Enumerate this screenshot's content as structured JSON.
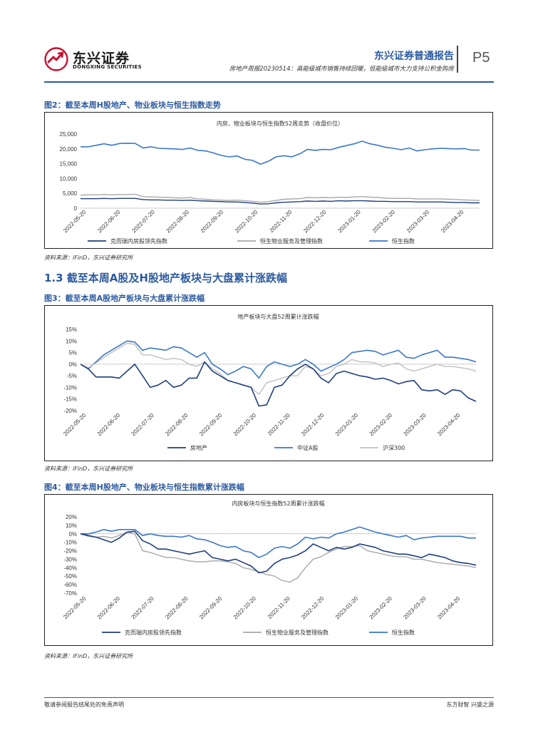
{
  "header": {
    "logo_cn": "东兴证券",
    "logo_en": "DONGXING SECURITIES",
    "report_type": "东兴证券普通报告",
    "report_subtitle": "房地产周报20230514：高能级城市销售持续回暖，低能级城市大力支持公积金购房",
    "page": "P5",
    "colors": {
      "brand_blue": "#2c5aa0",
      "logo_red": "#c8102e"
    }
  },
  "figure2": {
    "title": "图2：截至本周H股地产、物业板块与恒生指数走势",
    "source": "资料来源：iFinD，东兴证券研究所"
  },
  "section": {
    "title": "1.3 截至本周A股及H股地产板块与大盘累计涨跌幅"
  },
  "figure3": {
    "title": "图3：截至本周A股地产板块与大盘累计涨跌幅",
    "source": "资料来源：iFinD，东兴证券研究所"
  },
  "figure4": {
    "title": "图4：截至本周H股地产、物业板块与恒生指数累计涨跌幅",
    "source": "资料来源：iFinD，东兴证券研究所"
  },
  "footer": {
    "left": "敬请参阅报告结尾处的免责声明",
    "right": "东方财智 兴盛之源"
  },
  "chart_data": [
    {
      "id": "chart2",
      "type": "line",
      "title": "内房、物业板块与恒生指数52周走势（收盘价位）",
      "x_tick_labels": [
        "2022-05-20",
        "2022-06-20",
        "2022-07-20",
        "2022-08-20",
        "2022-09-20",
        "2022-10-20",
        "2022-11-20",
        "2022-12-20",
        "2023-01-20",
        "2023-02-20",
        "2023-03-20",
        "2023-04-20"
      ],
      "y_ticks": [
        0,
        5000,
        10000,
        15000,
        20000,
        25000
      ],
      "y_tick_labels": [
        "0",
        "5,000",
        "10,000",
        "15,000",
        "20,000",
        "25,000"
      ],
      "ylim": [
        0,
        25000
      ],
      "series": [
        {
          "name": "恒生指数",
          "color": "#3a78c8",
          "width": 1.6,
          "values": [
            20700,
            20700,
            21200,
            21700,
            21200,
            21800,
            21900,
            21800,
            20300,
            20700,
            20200,
            20100,
            20000,
            19800,
            20300,
            19500,
            19300,
            18600,
            17800,
            17300,
            17600,
            16500,
            16100,
            14800,
            15800,
            17300,
            17700,
            17300,
            18300,
            19800,
            19500,
            19800,
            19700,
            20500,
            21100,
            21700,
            22600,
            21700,
            21200,
            20500,
            20200,
            19700,
            20300,
            19300,
            19700,
            20000,
            20200,
            20100,
            20000,
            20100,
            19600,
            19600
          ]
        },
        {
          "name": "恒生物业服务及管理指数",
          "color": "#a8a8a8",
          "width": 1.4,
          "values": [
            4400,
            4500,
            4500,
            4600,
            4500,
            4600,
            4600,
            4700,
            3900,
            3800,
            3700,
            3600,
            3500,
            3400,
            3600,
            3100,
            3000,
            2800,
            2700,
            2600,
            2700,
            2500,
            2300,
            2000,
            2200,
            2600,
            3000,
            3100,
            3200,
            3600,
            3500,
            3600,
            3500,
            3700,
            3600,
            3800,
            3900,
            3700,
            3600,
            3400,
            3300,
            3300,
            3300,
            3100,
            3100,
            3100,
            3100,
            3000,
            2900,
            2800,
            2700,
            2600
          ]
        },
        {
          "name": "克而瑞内房股领先指数",
          "color": "#1f3f7f",
          "width": 1.4,
          "values": [
            3200,
            3200,
            3200,
            3300,
            3200,
            3300,
            3300,
            3300,
            2900,
            2800,
            2800,
            2700,
            2700,
            2600,
            2700,
            2500,
            2400,
            2300,
            2200,
            2100,
            2100,
            1900,
            1700,
            1400,
            1500,
            1800,
            2000,
            2100,
            2200,
            2400,
            2300,
            2400,
            2300,
            2500,
            2400,
            2500,
            2500,
            2400,
            2300,
            2300,
            2200,
            2200,
            2200,
            2100,
            2100,
            2100,
            2100,
            2000,
            1900,
            1900,
            1800,
            1800
          ]
        }
      ],
      "legend": [
        "克而瑞内房股领先指数",
        "恒生物业服务及管理指数",
        "恒生指数"
      ]
    },
    {
      "id": "chart3",
      "type": "line",
      "title": "地产板块与大盘52周累计涨跌幅",
      "x_tick_labels": [
        "2022-05-20",
        "2022-06-20",
        "2022-07-20",
        "2022-08-20",
        "2022-09-20",
        "2022-10-20",
        "2022-11-20",
        "2022-12-20",
        "2023-01-20",
        "2023-02-20",
        "2023-03-20",
        "2023-04-20"
      ],
      "y_ticks": [
        -20,
        -15,
        -10,
        -5,
        0,
        5,
        10,
        15
      ],
      "y_tick_labels": [
        "-20%",
        "-15%",
        "-10%",
        "-5%",
        "0%",
        "5%",
        "10%",
        "15%"
      ],
      "ylim": [
        -20,
        15
      ],
      "series": [
        {
          "name": "中证A股",
          "color": "#3a78c8",
          "width": 1.6,
          "values": [
            0,
            -2,
            1,
            4,
            6,
            8,
            10,
            9.5,
            6,
            7,
            6.5,
            6,
            7.5,
            7,
            5,
            3,
            5,
            0,
            -2,
            -4.5,
            -3,
            -1,
            -2,
            -6,
            -1,
            1,
            0,
            -1,
            0,
            2,
            0,
            -3,
            -1.5,
            0,
            2,
            5,
            5.5,
            6,
            5.5,
            4,
            5,
            6,
            3,
            2.5,
            4,
            5,
            6,
            3,
            3,
            2.5,
            2,
            1
          ]
        },
        {
          "name": "沪深300",
          "color": "#c0c0c0",
          "width": 1.4,
          "values": [
            0,
            -1.5,
            0.5,
            3,
            5,
            7,
            9,
            8.5,
            4,
            4,
            3,
            2,
            2.5,
            2,
            0,
            -1,
            1,
            -2,
            -4,
            -7,
            -8,
            -9,
            -10,
            -13,
            -8,
            -7,
            -6,
            -5,
            -5,
            -1,
            -2,
            -5,
            -4,
            -1,
            0,
            2,
            1,
            1,
            0.5,
            -1,
            0,
            0.5,
            -2,
            -3,
            -2,
            -1,
            0,
            -1,
            -1,
            -1.5,
            -2,
            -3
          ]
        },
        {
          "name": "房地产",
          "color": "#1f3f7f",
          "width": 1.6,
          "values": [
            0,
            -2,
            -5.5,
            -5.5,
            -5.5,
            -6,
            -3,
            0,
            -5,
            -10,
            -9,
            -7,
            -10,
            -9,
            -6,
            -6,
            1,
            -3,
            -5,
            -7,
            -8,
            -9,
            -10,
            -18,
            -17.5,
            -10,
            -9,
            -5,
            -2,
            0,
            -2,
            -6,
            -8,
            -4,
            -3,
            -4,
            -5,
            -5.5,
            -6.5,
            -6,
            -7,
            -8.5,
            -7.5,
            -7,
            -11,
            -11.5,
            -11,
            -13,
            -11,
            -11.5,
            -14.5,
            -16
          ]
        }
      ],
      "legend": [
        "房地产",
        "中证A股",
        "沪深300"
      ]
    },
    {
      "id": "chart4",
      "type": "line",
      "title": "内房板块与恒生指数52周累计涨跌幅",
      "x_tick_labels": [
        "2022-05-20",
        "2022-06-20",
        "2022-07-20",
        "2022-08-20",
        "2022-09-20",
        "2022-10-20",
        "2022-11-20",
        "2022-12-20",
        "2023-01-20",
        "2023-02-20",
        "2023-03-20",
        "2023-04-20"
      ],
      "y_ticks": [
        -70,
        -60,
        -50,
        -40,
        -30,
        -20,
        -10,
        0,
        10,
        20
      ],
      "y_tick_labels": [
        "-70%",
        "-60%",
        "-50%",
        "-40%",
        "-30%",
        "-20%",
        "-10%",
        "0%",
        "10%",
        "20%"
      ],
      "ylim": [
        -70,
        20
      ],
      "series": [
        {
          "name": "恒生指数",
          "color": "#3a78c8",
          "width": 1.6,
          "values": [
            0,
            0,
            2,
            5,
            3,
            5,
            5,
            5,
            -2,
            0,
            -2,
            -3,
            -3,
            -4,
            -2,
            -6,
            -7,
            -10,
            -14,
            -16,
            -15,
            -20,
            -22,
            -28,
            -24,
            -17,
            -15,
            -17,
            -12,
            -4,
            -6,
            -4,
            -5,
            0,
            2,
            5,
            8,
            5,
            2,
            0,
            -2,
            -4,
            -2,
            -7,
            -5,
            -4,
            -3,
            -3,
            -3,
            -3,
            -5,
            -5
          ]
        },
        {
          "name": "恒生物业服务及管理指数",
          "color": "#a8a8a8",
          "width": 1.4,
          "values": [
            0,
            -3,
            -4,
            -3,
            -5,
            -2,
            2,
            0,
            -20,
            -22,
            -25,
            -28,
            -28,
            -30,
            -32,
            -33,
            -33,
            -32,
            -32,
            -33,
            -35,
            -40,
            -42,
            -45,
            -48,
            -50,
            -55,
            -57,
            -52,
            -40,
            -30,
            -27,
            -22,
            -18,
            -15,
            -15,
            -14,
            -20,
            -22,
            -24,
            -26,
            -27,
            -27,
            -30,
            -30,
            -32,
            -34,
            -35,
            -36,
            -37,
            -38,
            -40
          ]
        },
        {
          "name": "克而瑞内房股领先指数",
          "color": "#1f3f7f",
          "width": 1.6,
          "values": [
            0,
            -2,
            -4,
            -7,
            -10,
            -5,
            2,
            3,
            -8,
            -12,
            -18,
            -18,
            -20,
            -22,
            -24,
            -22,
            -20,
            -28,
            -30,
            -32,
            -30,
            -34,
            -38,
            -46,
            -44,
            -35,
            -30,
            -28,
            -25,
            -20,
            -12,
            -16,
            -20,
            -16,
            -18,
            -16,
            -12,
            -14,
            -16,
            -20,
            -22,
            -24,
            -24,
            -26,
            -28,
            -24,
            -26,
            -28,
            -32,
            -34,
            -35,
            -37
          ]
        }
      ],
      "legend": [
        "克而瑞内房股领先指数",
        "恒生物业服务及管理指数",
        "恒生指数"
      ]
    }
  ]
}
